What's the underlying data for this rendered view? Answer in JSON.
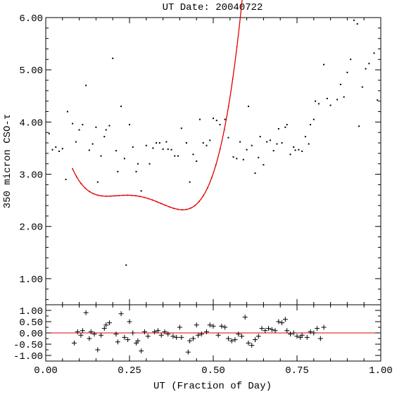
{
  "chart_data": [
    {
      "type": "scatter",
      "title": "UT Date: 20040722",
      "xlabel": "",
      "ylabel": "350 micron CSO-τ",
      "xlim": [
        0.0,
        1.0
      ],
      "ylim": [
        0.5,
        6.0
      ],
      "yticks": [
        "1.00",
        "2.00",
        "3.00",
        "4.00",
        "5.00",
        "6.00"
      ],
      "colors": {
        "points": "#000000",
        "fit": "#e00000"
      },
      "series": [
        {
          "type": "scatter",
          "points": [
            [
              0.01,
              3.78
            ],
            [
              0.02,
              3.47
            ],
            [
              0.03,
              3.52
            ],
            [
              0.04,
              3.44
            ],
            [
              0.05,
              3.49
            ],
            [
              0.06,
              2.9
            ],
            [
              0.065,
              4.2
            ],
            [
              0.08,
              3.97
            ],
            [
              0.09,
              3.62
            ],
            [
              0.1,
              3.85
            ],
            [
              0.11,
              3.95
            ],
            [
              0.12,
              4.7
            ],
            [
              0.13,
              3.46
            ],
            [
              0.14,
              3.58
            ],
            [
              0.15,
              3.9
            ],
            [
              0.155,
              2.85
            ],
            [
              0.165,
              3.35
            ],
            [
              0.175,
              3.72
            ],
            [
              0.18,
              3.85
            ],
            [
              0.19,
              3.93
            ],
            [
              0.2,
              5.22
            ],
            [
              0.21,
              3.45
            ],
            [
              0.215,
              3.05
            ],
            [
              0.225,
              4.3
            ],
            [
              0.235,
              3.3
            ],
            [
              0.24,
              1.26
            ],
            [
              0.25,
              3.95
            ],
            [
              0.26,
              3.52
            ],
            [
              0.27,
              3.05
            ],
            [
              0.275,
              3.2
            ],
            [
              0.285,
              2.68
            ],
            [
              0.3,
              3.55
            ],
            [
              0.31,
              3.2
            ],
            [
              0.32,
              3.5
            ],
            [
              0.33,
              3.6
            ],
            [
              0.34,
              3.6
            ],
            [
              0.35,
              3.48
            ],
            [
              0.36,
              3.62
            ],
            [
              0.365,
              3.48
            ],
            [
              0.375,
              3.47
            ],
            [
              0.385,
              3.35
            ],
            [
              0.395,
              3.35
            ],
            [
              0.405,
              3.88
            ],
            [
              0.42,
              3.6
            ],
            [
              0.43,
              2.85
            ],
            [
              0.44,
              3.38
            ],
            [
              0.45,
              3.25
            ],
            [
              0.46,
              4.05
            ],
            [
              0.47,
              3.6
            ],
            [
              0.48,
              3.55
            ],
            [
              0.49,
              3.65
            ],
            [
              0.5,
              4.07
            ],
            [
              0.51,
              4.03
            ],
            [
              0.52,
              3.95
            ],
            [
              0.535,
              4.05
            ],
            [
              0.545,
              3.7
            ],
            [
              0.56,
              3.33
            ],
            [
              0.57,
              3.3
            ],
            [
              0.58,
              3.62
            ],
            [
              0.59,
              3.28
            ],
            [
              0.6,
              3.47
            ],
            [
              0.605,
              4.3
            ],
            [
              0.615,
              3.55
            ],
            [
              0.625,
              3.02
            ],
            [
              0.635,
              3.32
            ],
            [
              0.64,
              3.72
            ],
            [
              0.65,
              3.18
            ],
            [
              0.66,
              3.62
            ],
            [
              0.67,
              3.65
            ],
            [
              0.68,
              3.45
            ],
            [
              0.69,
              3.58
            ],
            [
              0.695,
              3.87
            ],
            [
              0.705,
              3.6
            ],
            [
              0.715,
              3.9
            ],
            [
              0.72,
              3.95
            ],
            [
              0.73,
              3.38
            ],
            [
              0.74,
              3.52
            ],
            [
              0.745,
              3.46
            ],
            [
              0.755,
              3.47
            ],
            [
              0.765,
              3.44
            ],
            [
              0.775,
              3.72
            ],
            [
              0.785,
              3.58
            ],
            [
              0.79,
              3.95
            ],
            [
              0.8,
              4.05
            ],
            [
              0.805,
              4.4
            ],
            [
              0.815,
              4.35
            ],
            [
              0.83,
              5.1
            ],
            [
              0.84,
              4.45
            ],
            [
              0.85,
              4.32
            ],
            [
              0.87,
              4.43
            ],
            [
              0.88,
              4.72
            ],
            [
              0.89,
              4.48
            ],
            [
              0.9,
              4.95
            ],
            [
              0.91,
              5.2
            ],
            [
              0.92,
              5.95
            ],
            [
              0.93,
              5.88
            ],
            [
              0.935,
              3.92
            ],
            [
              0.945,
              4.67
            ],
            [
              0.955,
              5.02
            ],
            [
              0.965,
              5.12
            ],
            [
              0.98,
              5.32
            ],
            [
              0.99,
              4.42
            ]
          ]
        },
        {
          "type": "line",
          "x_range": [
            0.08,
            0.835
          ],
          "poly_coeffs": [
            5.3755,
            -46.57,
            280.03,
            -713.03,
            640.78
          ]
        }
      ]
    },
    {
      "type": "scatter",
      "xlabel": "UT (Fraction of Day)",
      "ylabel": "",
      "xlim": [
        0.0,
        1.0
      ],
      "ylim": [
        -1.25,
        1.25
      ],
      "xticks": [
        "0.00",
        "0.25",
        "0.50",
        "0.75",
        "1.00"
      ],
      "yticks": [
        "-1.00",
        "-0.50",
        "0.00",
        "0.50",
        "1.00"
      ],
      "reference_line": 0.0,
      "colors": {
        "points": "#000000",
        "zero_line": "#e00000"
      },
      "series": [
        {
          "type": "scatter",
          "marker": "+",
          "points": [
            [
              0.085,
              -0.45
            ],
            [
              0.095,
              0.05
            ],
            [
              0.105,
              -0.1
            ],
            [
              0.11,
              0.1
            ],
            [
              0.12,
              0.9
            ],
            [
              0.13,
              -0.25
            ],
            [
              0.135,
              0.05
            ],
            [
              0.145,
              -0.05
            ],
            [
              0.155,
              -0.75
            ],
            [
              0.165,
              -0.1
            ],
            [
              0.175,
              0.2
            ],
            [
              0.18,
              0.35
            ],
            [
              0.19,
              0.45
            ],
            [
              0.21,
              -0.05
            ],
            [
              0.215,
              -0.4
            ],
            [
              0.225,
              0.85
            ],
            [
              0.235,
              -0.2
            ],
            [
              0.245,
              -0.3
            ],
            [
              0.25,
              0.5
            ],
            [
              0.26,
              0.0
            ],
            [
              0.27,
              -0.45
            ],
            [
              0.275,
              -0.35
            ],
            [
              0.285,
              -0.8
            ],
            [
              0.295,
              0.05
            ],
            [
              0.305,
              -0.15
            ],
            [
              0.325,
              0.05
            ],
            [
              0.335,
              0.1
            ],
            [
              0.345,
              -0.1
            ],
            [
              0.355,
              0.05
            ],
            [
              0.365,
              -0.05
            ],
            [
              0.38,
              -0.15
            ],
            [
              0.39,
              -0.2
            ],
            [
              0.4,
              0.25
            ],
            [
              0.405,
              -0.2
            ],
            [
              0.425,
              -0.85
            ],
            [
              0.43,
              -0.35
            ],
            [
              0.44,
              -0.25
            ],
            [
              0.45,
              0.35
            ],
            [
              0.455,
              -0.1
            ],
            [
              0.465,
              -0.05
            ],
            [
              0.48,
              0.05
            ],
            [
              0.49,
              0.35
            ],
            [
              0.5,
              0.3
            ],
            [
              0.515,
              -0.1
            ],
            [
              0.525,
              0.3
            ],
            [
              0.535,
              0.25
            ],
            [
              0.545,
              -0.25
            ],
            [
              0.555,
              -0.35
            ],
            [
              0.565,
              -0.3
            ],
            [
              0.575,
              -0.05
            ],
            [
              0.585,
              -0.15
            ],
            [
              0.595,
              0.7
            ],
            [
              0.605,
              -0.45
            ],
            [
              0.615,
              -0.55
            ],
            [
              0.625,
              -0.3
            ],
            [
              0.635,
              -0.15
            ],
            [
              0.645,
              0.2
            ],
            [
              0.655,
              0.1
            ],
            [
              0.665,
              0.2
            ],
            [
              0.675,
              0.15
            ],
            [
              0.685,
              0.1
            ],
            [
              0.695,
              0.5
            ],
            [
              0.705,
              0.45
            ],
            [
              0.715,
              0.6
            ],
            [
              0.72,
              0.1
            ],
            [
              0.73,
              -0.05
            ],
            [
              0.74,
              0.0
            ],
            [
              0.75,
              -0.15
            ],
            [
              0.76,
              -0.2
            ],
            [
              0.765,
              -0.1
            ],
            [
              0.78,
              -0.2
            ],
            [
              0.79,
              0.05
            ],
            [
              0.8,
              0.0
            ],
            [
              0.81,
              0.2
            ],
            [
              0.82,
              -0.25
            ],
            [
              0.83,
              0.25
            ]
          ]
        }
      ]
    }
  ]
}
